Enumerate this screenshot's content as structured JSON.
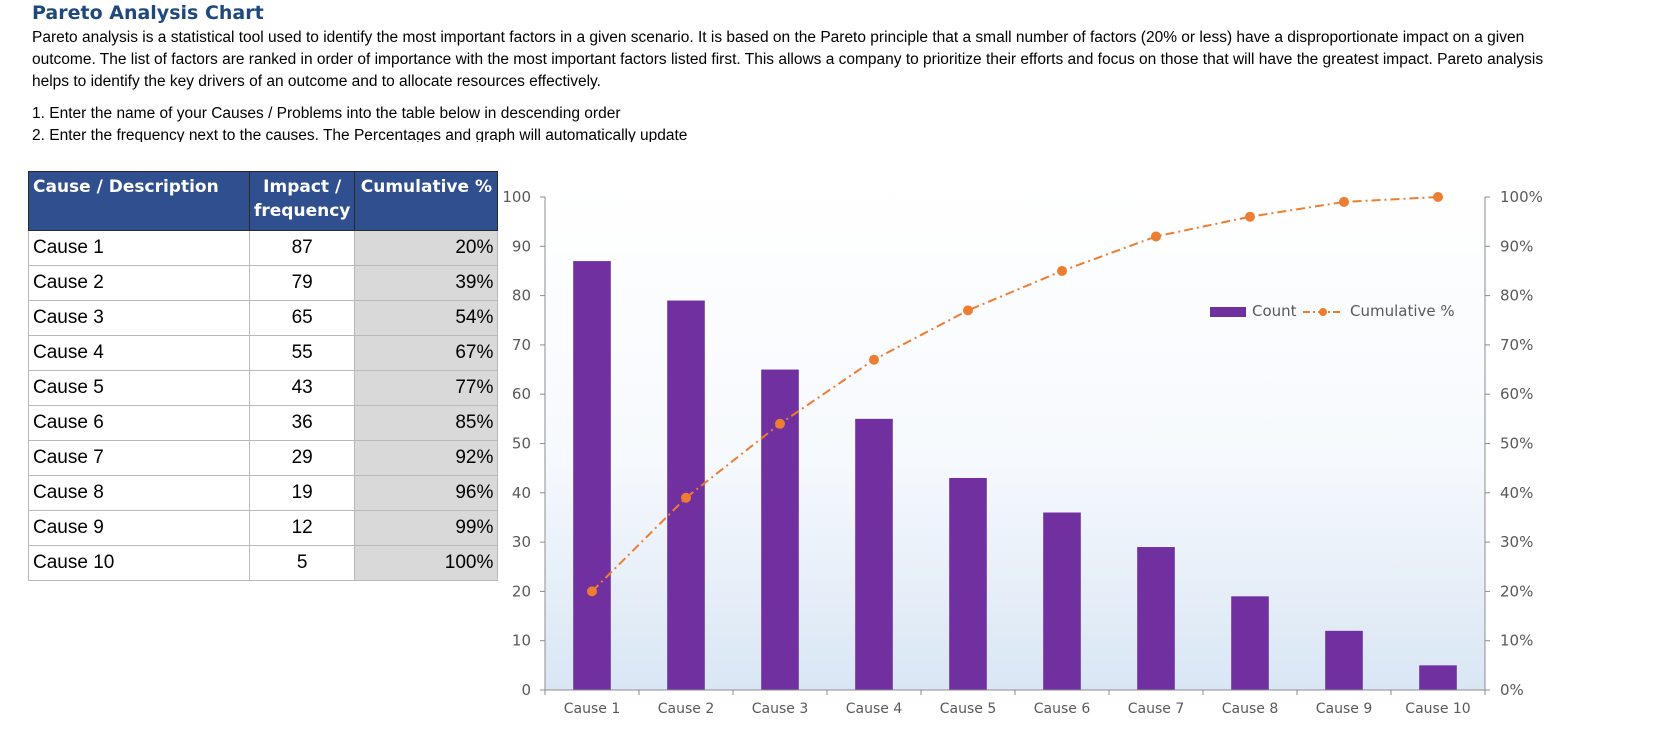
{
  "title": "Pareto Analysis Chart",
  "intro": "Pareto analysis is a statistical tool used to identify the most important factors in a given scenario. It is based on the Pareto principle that a small number of factors  (20% or less) have a disproportionate impact on a given outcome. The list of factors are ranked in order of importance with the most important factors listed first. This allows a company to prioritize their efforts and focus on those that will have the greatest impact. Pareto analysis helps to identify the key drivers of an outcome and to allocate resources effectively.",
  "steps": [
    "1. Enter the name of your Causes / Problems into the table below in descending order",
    "2. Enter the frequency next to the causes. The Percentages and graph will automatically update"
  ],
  "table": {
    "headers": [
      "Cause / Description",
      "Impact / frequency",
      "Cumulative %"
    ],
    "rows": [
      {
        "cause": "Cause 1",
        "impact": "87",
        "cumulative": "20%"
      },
      {
        "cause": "Cause 2",
        "impact": "79",
        "cumulative": "39%"
      },
      {
        "cause": "Cause 3",
        "impact": "65",
        "cumulative": "54%"
      },
      {
        "cause": "Cause 4",
        "impact": "55",
        "cumulative": "67%"
      },
      {
        "cause": "Cause 5",
        "impact": "43",
        "cumulative": "77%"
      },
      {
        "cause": "Cause 6",
        "impact": "36",
        "cumulative": "85%"
      },
      {
        "cause": "Cause 7",
        "impact": "29",
        "cumulative": "92%"
      },
      {
        "cause": "Cause 8",
        "impact": "19",
        "cumulative": "96%"
      },
      {
        "cause": "Cause 9",
        "impact": "12",
        "cumulative": "99%"
      },
      {
        "cause": "Cause 10",
        "impact": "5",
        "cumulative": "100%"
      }
    ]
  },
  "chart_data": {
    "type": "bar",
    "categories": [
      "Cause 1",
      "Cause 2",
      "Cause 3",
      "Cause 4",
      "Cause 5",
      "Cause 6",
      "Cause 7",
      "Cause 8",
      "Cause 9",
      "Cause 10"
    ],
    "series": [
      {
        "name": "Count",
        "type": "bar",
        "axis": "left",
        "color": "#7030a0",
        "values": [
          87,
          79,
          65,
          55,
          43,
          36,
          29,
          19,
          12,
          5
        ]
      },
      {
        "name": "Cumulative %",
        "type": "line",
        "axis": "right",
        "color": "#ed7d31",
        "line_style": "dash-dot",
        "marker": "circle",
        "values": [
          20,
          39,
          54,
          67,
          77,
          85,
          92,
          96,
          99,
          100
        ]
      }
    ],
    "ylim": [
      0,
      100
    ],
    "y_ticks": [
      "0",
      "10",
      "20",
      "30",
      "40",
      "50",
      "60",
      "70",
      "80",
      "90",
      "100"
    ],
    "y2lim": [
      0,
      100
    ],
    "y2_ticks": [
      "0%",
      "10%",
      "20%",
      "30%",
      "40%",
      "50%",
      "60%",
      "70%",
      "80%",
      "90%",
      "100%"
    ],
    "legend": "top-right, inside plot",
    "grid": false,
    "plot_background": "light blue gradient at bottom"
  },
  "colors": {
    "header_bg": "#2f4f8f",
    "title": "#1f497d",
    "cumulative_cell": "#d9d9d9",
    "bar": "#7030a0",
    "line": "#ed7d31"
  }
}
